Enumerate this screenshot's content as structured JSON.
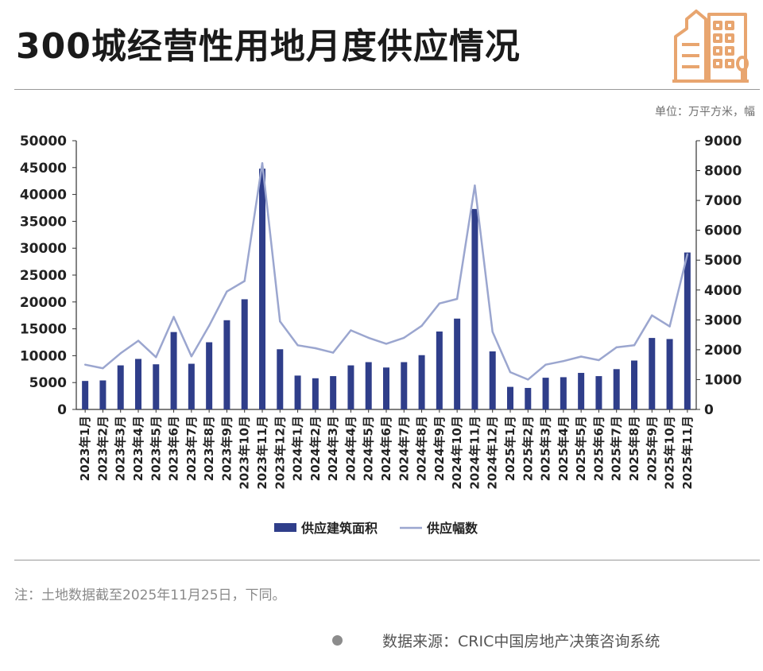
{
  "header": {
    "title": "300城经营性用地月度供应情况",
    "unit": "单位：万平方米，幅"
  },
  "colors": {
    "bar": "#2f3e8a",
    "line": "#9ba6cf",
    "axis": "#333333",
    "logo": "#e8a56f"
  },
  "icons": {
    "logo": "building-icon"
  },
  "chart_data": {
    "type": "bar",
    "categories": [
      "2023年1月",
      "2023年2月",
      "2023年3月",
      "2023年4月",
      "2023年5月",
      "2023年6月",
      "2023年7月",
      "2023年8月",
      "2023年9月",
      "2023年10月",
      "2023年11月",
      "2023年12月",
      "2024年1月",
      "2024年2月",
      "2024年3月",
      "2024年4月",
      "2024年5月",
      "2024年6月",
      "2024年7月",
      "2024年8月",
      "2024年9月",
      "2024年10月",
      "2024年11月",
      "2024年12月",
      "2025年1月",
      "2025年2月",
      "2025年3月",
      "2025年4月",
      "2025年5月",
      "2025年6月",
      "2025年7月",
      "2025年8月",
      "2025年9月",
      "2025年10月",
      "2025年11月"
    ],
    "series": [
      {
        "name": "供应建筑面积",
        "type": "bar",
        "axis": "left",
        "values": [
          5300,
          5400,
          8200,
          9400,
          8400,
          14400,
          8500,
          12500,
          16600,
          20500,
          44800,
          11200,
          6300,
          5800,
          6200,
          8200,
          8800,
          7800,
          8800,
          10100,
          14500,
          16900,
          37300,
          10800,
          4200,
          4000,
          5900,
          6000,
          6800,
          6200,
          7500,
          9100,
          13300,
          13100,
          29200
        ]
      },
      {
        "name": "供应幅数",
        "type": "line",
        "axis": "right",
        "values": [
          1500,
          1380,
          1880,
          2300,
          1750,
          3100,
          1780,
          2800,
          3950,
          4300,
          8250,
          2950,
          2150,
          2050,
          1900,
          2650,
          2400,
          2200,
          2400,
          2800,
          3550,
          3700,
          7500,
          2600,
          1250,
          1000,
          1500,
          1620,
          1770,
          1650,
          2080,
          2150,
          3150,
          2780,
          5200
        ]
      }
    ],
    "left_axis": {
      "min": 0,
      "max": 50000,
      "ticks": [
        0,
        5000,
        10000,
        15000,
        20000,
        25000,
        30000,
        35000,
        40000,
        45000,
        50000
      ]
    },
    "right_axis": {
      "min": 0,
      "max": 9000,
      "ticks": [
        0,
        1000,
        2000,
        3000,
        4000,
        5000,
        6000,
        7000,
        8000,
        9000
      ]
    },
    "legend": {
      "position": "bottom",
      "items": [
        "供应建筑面积",
        "供应幅数"
      ]
    },
    "grid": false
  },
  "footer": {
    "note": "注：土地数据截至2025年11月25日，下同。",
    "source": "数据来源：CRIC中国房地产决策咨询系统"
  }
}
